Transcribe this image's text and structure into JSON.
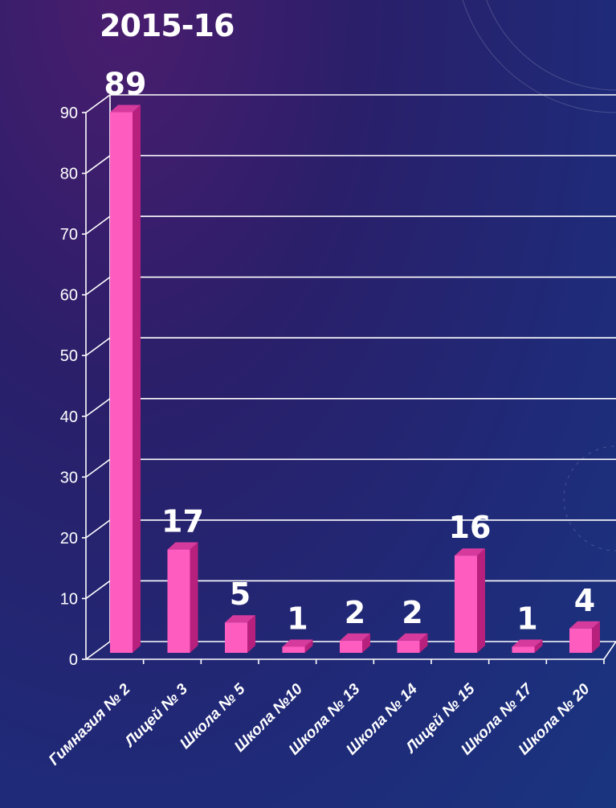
{
  "chart_data": {
    "type": "bar",
    "title": "2015-16",
    "categories": [
      "Гимназия № 2",
      "Лицей № 3",
      "Школа № 5",
      "Школа №10",
      "Школа № 13",
      "Школа № 14",
      "Лицей № 15",
      "Школа № 17",
      "Школа № 20"
    ],
    "values": [
      89,
      17,
      5,
      1,
      2,
      2,
      16,
      1,
      4
    ],
    "ylim": [
      0,
      90
    ],
    "yticks": [
      0,
      10,
      20,
      30,
      40,
      50,
      60,
      70,
      80,
      90
    ],
    "grid": true,
    "legend": "none",
    "colors": {
      "bar_front": "#ff5cc0",
      "bar_side": "#b8207e",
      "bar_top": "#d63a9c",
      "grid": "#ffffff",
      "text": "#ffffff"
    }
  }
}
